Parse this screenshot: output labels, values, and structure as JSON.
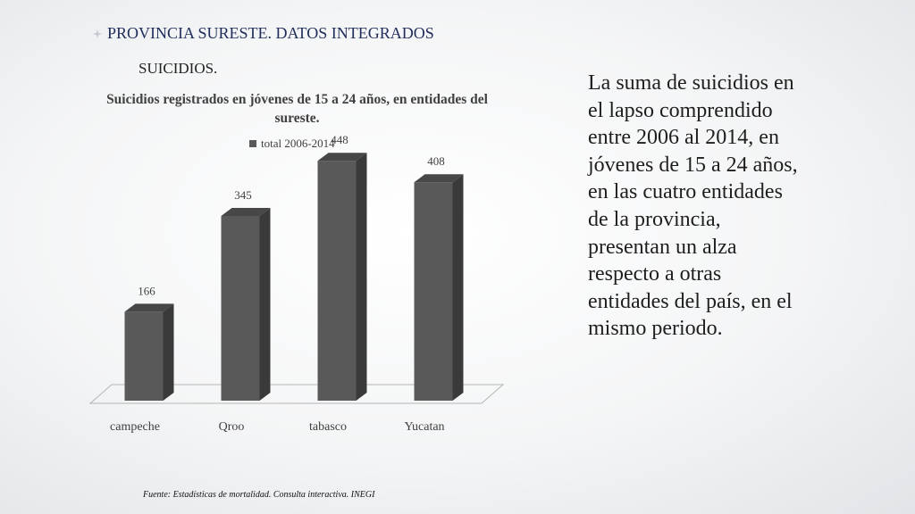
{
  "slide": {
    "title": "PROVINCIA SURESTE. DATOS INTEGRADOS",
    "subtitle": "SUICIDIOS.",
    "body": "La suma de suicidios en el lapso comprendido entre 2006 al 2014, en jóvenes de 15 a 24 años, en las cuatro entidades de la provincia, presentan un alza respecto a otras entidades del país, en el mismo periodo.",
    "source": "Fuente:  Estadísticas de mortalidad. Consulta interactiva. INEGI"
  },
  "colors": {
    "bar_front": "#595959",
    "bar_side": "#3a3a3a",
    "bar_top": "#474747",
    "title": "#1f2d5a"
  },
  "chart_data": {
    "type": "bar",
    "title": "Suicidios registrados en jóvenes de 15 a 24 años, en entidades del sureste.",
    "categories": [
      "campeche",
      "Qroo",
      "tabasco",
      "Yucatan"
    ],
    "series": [
      {
        "name": "total 2006-2014",
        "values": [
          166,
          345,
          448,
          408
        ]
      }
    ],
    "ylim": [
      0,
      500
    ],
    "grid": false,
    "legend": "top",
    "style": "3d-column"
  }
}
